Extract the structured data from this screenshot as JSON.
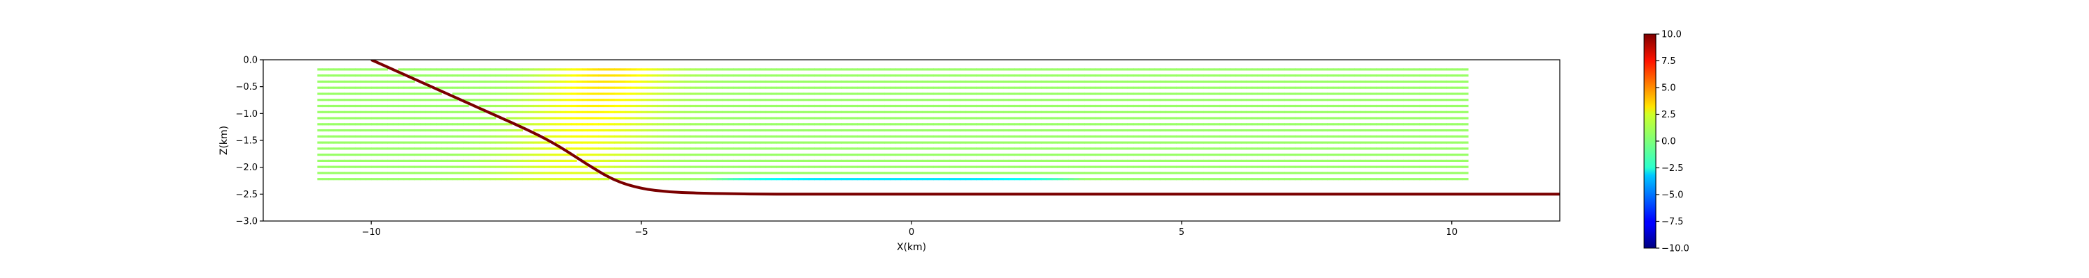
{
  "chart_data": {
    "type": "scatter",
    "xlabel": "X(km)",
    "ylabel": "Z(km)",
    "xlim": [
      -12,
      12
    ],
    "ylim": [
      -3.0,
      0.0
    ],
    "xticks": [
      -10,
      -5,
      0,
      5,
      10
    ],
    "xtick_labels": [
      "−10",
      "−5",
      "0",
      "5",
      "10"
    ],
    "yticks": [
      0.0,
      -0.5,
      -1.0,
      -1.5,
      -2.0,
      -2.5,
      -3.0
    ],
    "ytick_labels": [
      "0.0",
      "−0.5",
      "−1.0",
      "−1.5",
      "−2.0",
      "−2.5",
      "−3.0"
    ],
    "colorbar": {
      "colormap": "jet",
      "range": [
        -10,
        10
      ],
      "ticks": [
        10,
        7.5,
        5,
        2.5,
        0,
        -2.5,
        -5,
        -7.5,
        -10
      ],
      "tick_labels": [
        "10.0",
        "7.5",
        "5.0",
        "2.5",
        "0.0",
        "−2.5",
        "−5.0",
        "−7.5",
        "−10.0"
      ]
    },
    "fault_curve": {
      "color": "#7a0000",
      "x": [
        -10,
        -9,
        -8,
        -7,
        -6.5,
        -6,
        -5.5,
        -5,
        -4.5,
        -4,
        -3,
        -2,
        0,
        5,
        10,
        12
      ],
      "z": [
        0.0,
        -0.45,
        -0.9,
        -1.35,
        -1.62,
        -1.95,
        -2.25,
        -2.4,
        -2.46,
        -2.48,
        -2.5,
        -2.5,
        -2.5,
        -2.5,
        -2.5,
        -2.5
      ]
    },
    "layers": {
      "count": 19,
      "z_top": -0.18,
      "z_bottom": -2.22,
      "x_right": 10.3,
      "x_left_shallow": -11.0,
      "x_left_deep": -11.0,
      "base_value": 0.5,
      "fold_peak_value": 3.2,
      "fold_peak_x": -5.6,
      "bottom_value": -3.0,
      "bottom_x_range": [
        -3.8,
        3.2
      ]
    }
  }
}
